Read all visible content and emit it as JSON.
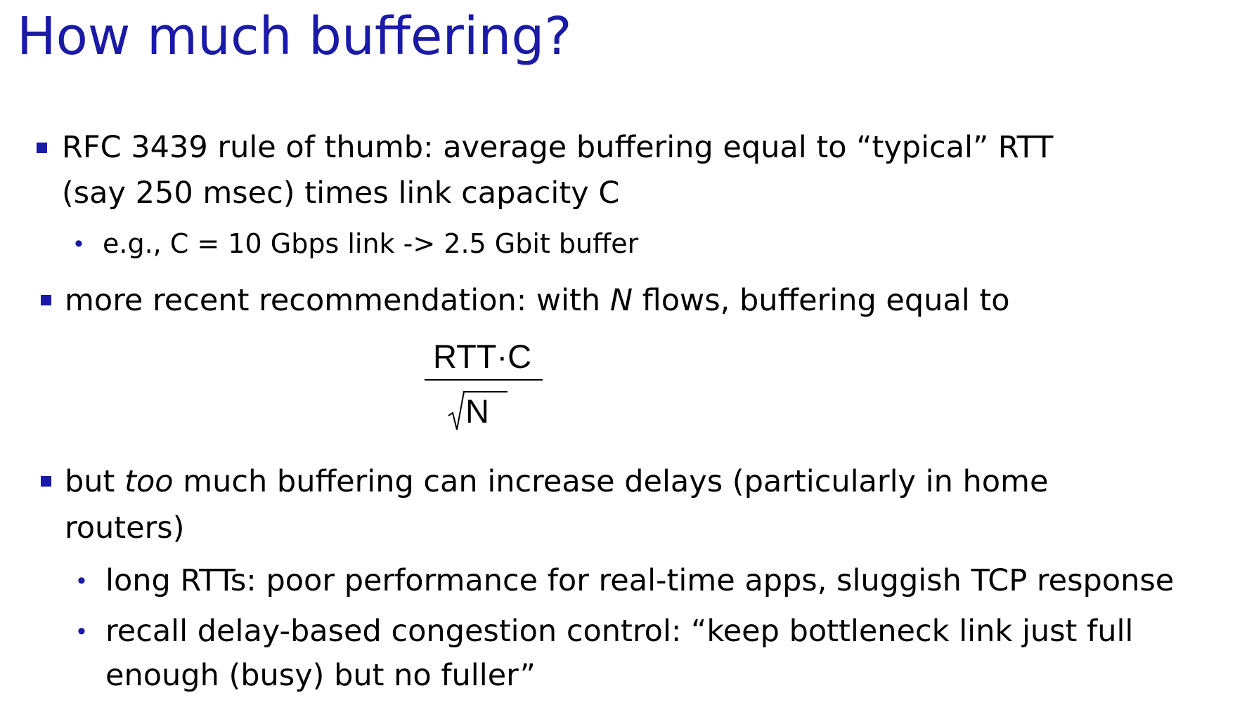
{
  "title": "How much buffering?",
  "bullets": [
    {
      "lines": [
        "RFC 3439 rule of thumb: average buffering equal to “typical” RTT",
        "(say 250 msec) times link capacity C"
      ],
      "sub": [
        "e.g., C = 10 Gbps link -> 2.5 Gbit buffer"
      ]
    },
    {
      "pre": "more recent recommendation: with ",
      "em": "N",
      "post": " flows, buffering equal to"
    },
    {
      "pre": "but ",
      "em": "too",
      "post": " much buffering can increase delays (particularly in home",
      "line2": "routers)",
      "sub": [
        "long RTTs: poor performance for real-time apps, sluggish TCP response"
      ],
      "sub2_lines": [
        "recall delay-based congestion control: “keep bottleneck link just full",
        "enough (busy) but no fuller”"
      ]
    }
  ],
  "formula": {
    "numerator": "RTT·C",
    "denominator": "N"
  }
}
